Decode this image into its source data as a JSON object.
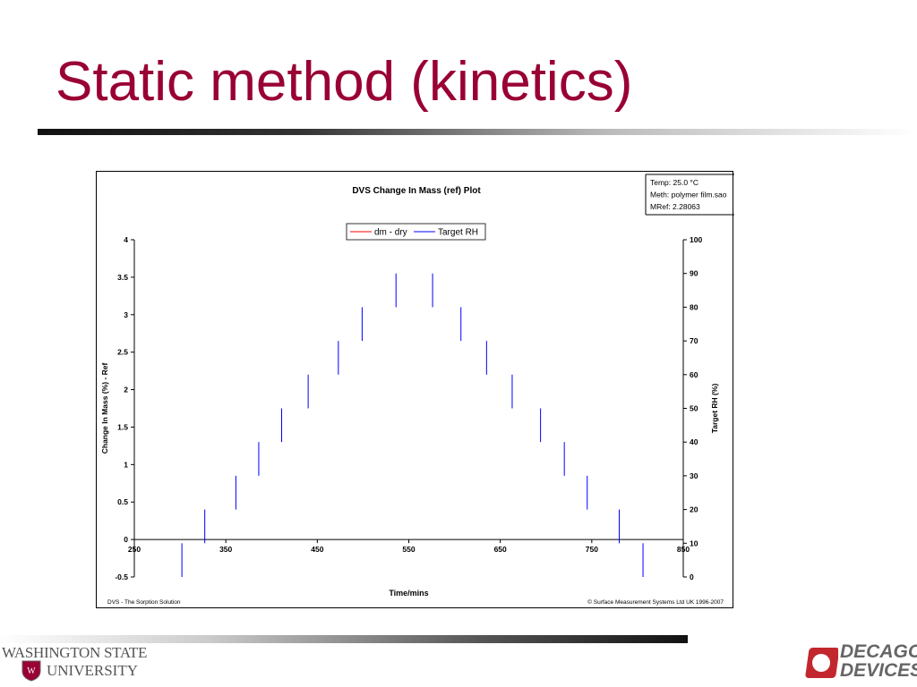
{
  "slide": {
    "title": "Static method (kinetics)"
  },
  "logos": {
    "wsu_line1": "WASHINGTON STATE",
    "wsu_line2": "UNIVERSITY",
    "decagon_line1": "DECAGON",
    "decagon_line2": "DEVICES"
  },
  "colors": {
    "title": "#990033",
    "target_rh": "#0000ff",
    "dm_dry": "#ff0000"
  },
  "chart_data": {
    "type": "line",
    "title": "DVS Change In Mass (ref) Plot",
    "xlabel": "Time/mins",
    "ylabel": "Change In Mass (%) - Ref",
    "y2label": "Target RH (%)",
    "xlim": [
      250,
      850
    ],
    "ylim": [
      -0.5,
      4
    ],
    "y2lim": [
      0,
      100
    ],
    "x_ticks": [
      "250",
      "350",
      "450",
      "550",
      "650",
      "750",
      "850"
    ],
    "y_ticks": [
      "-0.5",
      "0",
      "0.5",
      "1",
      "1.5",
      "2",
      "2.5",
      "3",
      "3.5",
      "4"
    ],
    "y2_ticks": [
      "0",
      "10",
      "20",
      "30",
      "40",
      "50",
      "60",
      "70",
      "80",
      "90",
      "100"
    ],
    "legend": [
      "dm - dry",
      "Target RH"
    ],
    "legend_position": "top-center",
    "grid": false,
    "info_box": [
      "Temp:  25.0 °C",
      "Meth:  polymer film.sao",
      "MRef:  2.28063"
    ],
    "footer_left": "DVS - The Sorption Solution",
    "footer_right": "© Surface Measurement Systems Ltd UK 1996-2007",
    "series": [
      {
        "name": "Target RH",
        "axis": "y2",
        "color": "#0000ff",
        "segments": [
          {
            "x": 302,
            "rh": [
              0,
              10
            ]
          },
          {
            "x": 327,
            "rh": [
              10,
              20
            ]
          },
          {
            "x": 361,
            "rh": [
              20,
              30
            ]
          },
          {
            "x": 386,
            "rh": [
              30,
              40
            ]
          },
          {
            "x": 411,
            "rh": [
              40,
              50
            ]
          },
          {
            "x": 440,
            "rh": [
              50,
              60
            ]
          },
          {
            "x": 473,
            "rh": [
              60,
              70
            ]
          },
          {
            "x": 499,
            "rh": [
              70,
              80
            ]
          },
          {
            "x": 536,
            "rh": [
              80,
              90
            ]
          },
          {
            "x": 576,
            "rh": [
              80,
              90
            ]
          },
          {
            "x": 607,
            "rh": [
              70,
              80
            ]
          },
          {
            "x": 635,
            "rh": [
              60,
              70
            ]
          },
          {
            "x": 663,
            "rh": [
              50,
              60
            ]
          },
          {
            "x": 694,
            "rh": [
              40,
              50
            ]
          },
          {
            "x": 720,
            "rh": [
              30,
              40
            ]
          },
          {
            "x": 745,
            "rh": [
              20,
              30
            ]
          },
          {
            "x": 780,
            "rh": [
              10,
              20
            ]
          },
          {
            "x": 806,
            "rh": [
              0,
              10
            ]
          }
        ]
      },
      {
        "name": "dm - dry",
        "axis": "y",
        "color": "#ff0000",
        "points": []
      }
    ]
  }
}
